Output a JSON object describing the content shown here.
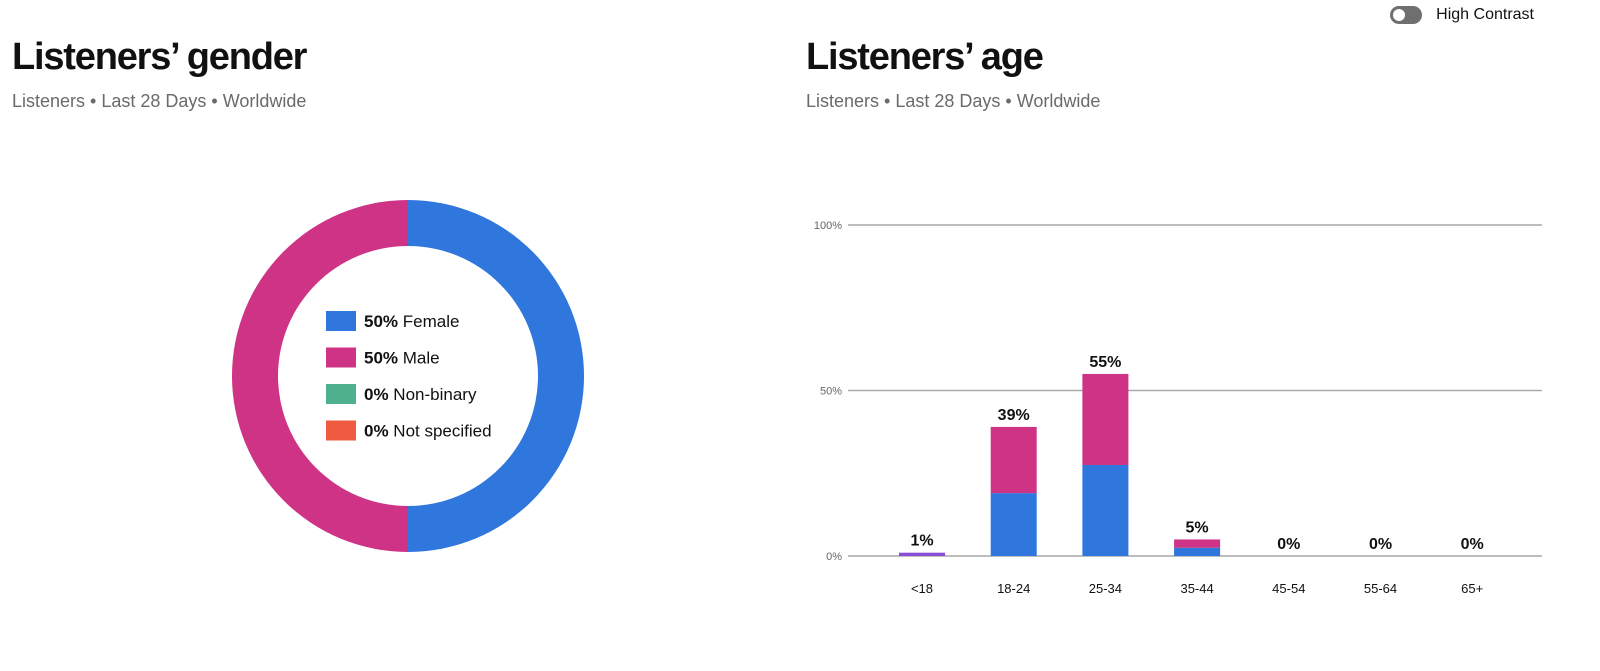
{
  "toggle": {
    "label": "High Contrast",
    "on": false
  },
  "gender": {
    "title": "Listeners’ gender",
    "subtitle": "Listeners • Last 28 Days • Worldwide"
  },
  "age": {
    "title": "Listeners’ age",
    "subtitle": "Listeners • Last 28 Days • Worldwide"
  },
  "colors": {
    "female": "#2f76dd",
    "male": "#cf3386",
    "non_binary": "#4fb08e",
    "not_specified": "#ef5a41",
    "under18": "#8a4fd9"
  },
  "chart_data": [
    {
      "type": "pie",
      "title": "Listeners’ gender",
      "categories": [
        "Female",
        "Male",
        "Non-binary",
        "Not specified"
      ],
      "values": [
        50,
        50,
        0,
        0
      ],
      "value_labels": [
        "50%",
        "50%",
        "0%",
        "0%"
      ],
      "donut": true,
      "legend": "center"
    },
    {
      "type": "bar",
      "stacked": true,
      "title": "Listeners’ age",
      "categories": [
        "<18",
        "18-24",
        "25-34",
        "35-44",
        "45-54",
        "55-64",
        "65+"
      ],
      "series": [
        {
          "name": "Female",
          "values": [
            0.5,
            19,
            27.5,
            2.5,
            0,
            0,
            0
          ]
        },
        {
          "name": "Male",
          "values": [
            0.5,
            20,
            27.5,
            2.5,
            0,
            0,
            0
          ]
        }
      ],
      "totals": [
        "1%",
        "39%",
        "55%",
        "5%",
        "0%",
        "0%",
        "0%"
      ],
      "total_values": [
        1,
        39,
        55,
        5,
        0,
        0,
        0
      ],
      "ylim": [
        0,
        100
      ],
      "yticks": [
        0,
        50,
        100
      ],
      "ytick_labels": [
        "0%",
        "50%",
        "100%"
      ],
      "grid": true
    }
  ]
}
